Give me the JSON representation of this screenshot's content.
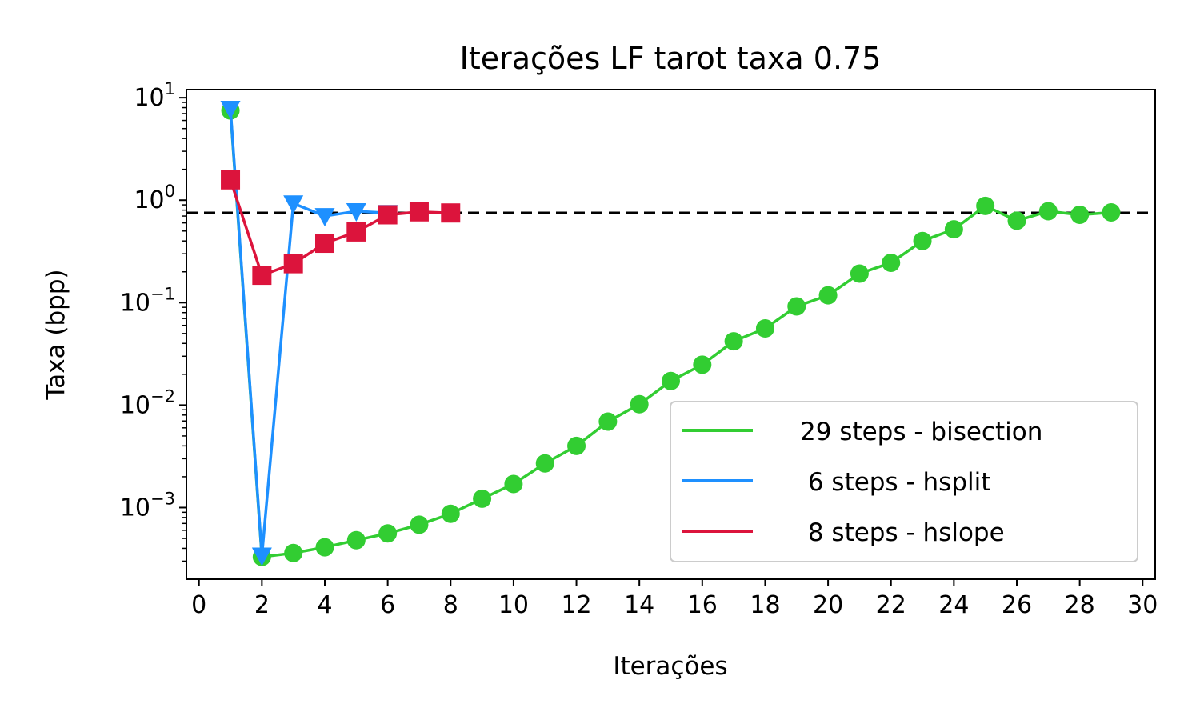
{
  "chart_data": {
    "type": "line",
    "title": "Iterações LF tarot taxa 0.75",
    "xlabel": "Iterações",
    "ylabel": "Taxa (bpp)",
    "xlim": [
      -0.4,
      30.4
    ],
    "ylim": [
      0.0002,
      12
    ],
    "yscale": "log",
    "x_ticks": [
      0,
      2,
      4,
      6,
      8,
      10,
      12,
      14,
      16,
      18,
      20,
      22,
      24,
      26,
      28,
      30
    ],
    "y_ticks": [
      {
        "value": 0.001,
        "base": "10",
        "exp": "−3"
      },
      {
        "value": 0.01,
        "base": "10",
        "exp": "−2"
      },
      {
        "value": 0.1,
        "base": "10",
        "exp": "−1"
      },
      {
        "value": 1,
        "base": "10",
        "exp": "0"
      },
      {
        "value": 10,
        "base": "10",
        "exp": "1"
      }
    ],
    "target_line": {
      "y": 0.75,
      "style": "dashed",
      "color": "#000000"
    },
    "legend_position": "lower right",
    "grid": false,
    "series": [
      {
        "name": "29 steps - bisection",
        "color": "#32cd32",
        "marker": "circle",
        "x": [
          1,
          2,
          3,
          4,
          5,
          6,
          7,
          8,
          9,
          10,
          11,
          12,
          13,
          14,
          15,
          16,
          17,
          18,
          19,
          20,
          21,
          22,
          23,
          24,
          25,
          26,
          27,
          28,
          29
        ],
        "y": [
          7.5,
          0.00033,
          0.00036,
          0.00041,
          0.00048,
          0.00056,
          0.00068,
          0.00087,
          0.00122,
          0.0017,
          0.0027,
          0.004,
          0.0069,
          0.0102,
          0.0172,
          0.0248,
          0.042,
          0.056,
          0.092,
          0.118,
          0.192,
          0.245,
          0.4,
          0.52,
          0.88,
          0.63,
          0.78,
          0.72,
          0.76
        ]
      },
      {
        "name": " 6 steps - hsplit",
        "color": "#1e90ff",
        "marker": "triangle-down",
        "x": [
          1,
          2,
          3,
          4,
          5,
          6
        ],
        "y": [
          7.8,
          0.00034,
          0.93,
          0.7,
          0.78,
          0.75
        ]
      },
      {
        "name": " 8 steps - hslope",
        "color": "#dc143c",
        "marker": "square",
        "x": [
          1,
          2,
          3,
          4,
          5,
          6,
          7,
          8
        ],
        "y": [
          1.58,
          0.185,
          0.24,
          0.38,
          0.49,
          0.72,
          0.77,
          0.75
        ]
      }
    ]
  }
}
